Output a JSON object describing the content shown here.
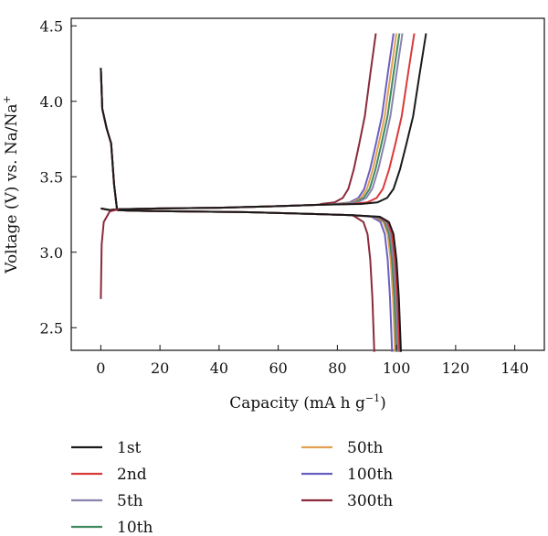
{
  "chart_data": {
    "type": "line",
    "xlabel": "Capacity (mA h g",
    "xlabel_sup": "−1",
    "xlabel_end": ")",
    "ylabel": "Voltage (V) vs. Na/Na",
    "ylabel_sup": "+",
    "xlim": [
      -10,
      150
    ],
    "ylim": [
      2.35,
      4.55
    ],
    "xticks": [
      0,
      20,
      40,
      60,
      80,
      100,
      120,
      140
    ],
    "yticks": [
      2.5,
      3.0,
      3.5,
      4.0,
      4.5
    ],
    "xtick_labels": [
      "0",
      "20",
      "40",
      "60",
      "80",
      "100",
      "120",
      "140"
    ],
    "ytick_labels": [
      "2.5",
      "3.0",
      "3.5",
      "4.0",
      "4.5"
    ],
    "grid": false,
    "legend_position": "below-plot",
    "series": [
      {
        "name": "1st",
        "color": "#1a1a1a",
        "charge_end": 110,
        "discharge_end": 101.5
      },
      {
        "name": "2nd",
        "color": "#d93a3a",
        "charge_end": 106,
        "discharge_end": 101
      },
      {
        "name": "5th",
        "color": "#8a84b0",
        "charge_end": 102,
        "discharge_end": 100.5
      },
      {
        "name": "10th",
        "color": "#3f8a5f",
        "charge_end": 101,
        "discharge_end": 100
      },
      {
        "name": "50th",
        "color": "#e3a052",
        "charge_end": 100,
        "discharge_end": 99.5
      },
      {
        "name": "100th",
        "color": "#6a5fc0",
        "charge_end": 99,
        "discharge_end": 98.5
      },
      {
        "name": "300th",
        "color": "#8a2a3a",
        "charge_end": 93,
        "discharge_end": 92.5
      }
    ]
  }
}
